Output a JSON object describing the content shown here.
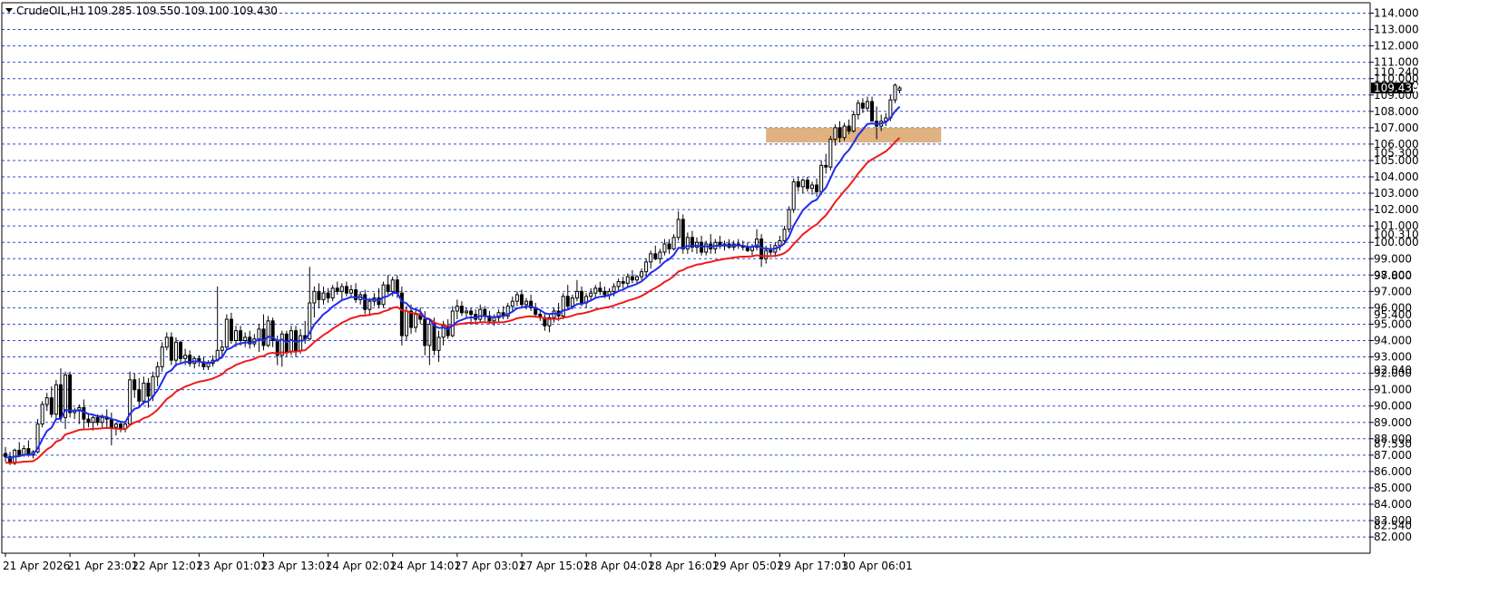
{
  "header": {
    "symbol": "CrudeOIL,H1",
    "ohlc": "109.285 109.550 109.100 109.430"
  },
  "colors": {
    "background": "#ffffff",
    "grid": "#2f4fd6",
    "bull_body": "#ffffff",
    "bear_body": "#000000",
    "wick": "#000000",
    "ma_fast": "#1f2bf0",
    "ma_slow": "#ee1b1b",
    "zone": "#d9a56a",
    "price_tag": "#000000",
    "price_tag_text": "#ffffff"
  },
  "chart_data": {
    "type": "candlestick",
    "title": "CrudeOIL,H1",
    "ylim": [
      82.0,
      114.5
    ],
    "grid": true,
    "y_ticks": [
      "114.000",
      "113.000",
      "112.000",
      "111.000",
      "110.000",
      "109.000",
      "108.000",
      "107.000",
      "106.000",
      "105.000",
      "104.000",
      "103.000",
      "102.000",
      "101.000",
      "100.000",
      "99.000",
      "98.000",
      "97.000",
      "96.000",
      "95.000",
      "94.000",
      "93.000",
      "92.000",
      "91.000",
      "90.000",
      "89.000",
      "88.000",
      "87.000",
      "86.000",
      "85.000",
      "84.000",
      "83.000",
      "82.000"
    ],
    "x_ticks": [
      {
        "label": "21 Apr 2026",
        "bar": 0
      },
      {
        "label": "21 Apr 23:01",
        "bar": 14
      },
      {
        "label": "22 Apr 12:01",
        "bar": 28
      },
      {
        "label": "23 Apr 01:01",
        "bar": 42
      },
      {
        "label": "23 Apr 13:01",
        "bar": 56
      },
      {
        "label": "24 Apr 02:01",
        "bar": 70
      },
      {
        "label": "24 Apr 14:01",
        "bar": 84
      },
      {
        "label": "27 Apr 03:01",
        "bar": 98
      },
      {
        "label": "27 Apr 15:01",
        "bar": 112
      },
      {
        "label": "28 Apr 04:01",
        "bar": 126
      },
      {
        "label": "28 Apr 16:01",
        "bar": 140
      },
      {
        "label": "29 Apr 05:01",
        "bar": 154
      },
      {
        "label": "29 Apr 17:01",
        "bar": 168
      },
      {
        "label": "30 Apr 06:01",
        "bar": 182
      }
    ],
    "price_tags": [
      "110.240",
      "109.430",
      "105.300",
      "100.310",
      "97.800",
      "95.400",
      "92.040",
      "87.530",
      "82.540"
    ],
    "current_price": 109.43,
    "zone": {
      "bar_from": 165,
      "bar_to": 203,
      "price_low": 106.1,
      "price_high": 107.0
    },
    "candles": [
      [
        87.1,
        87.5,
        86.6,
        86.9
      ],
      [
        86.9,
        87.2,
        86.4,
        86.5
      ],
      [
        86.5,
        87.4,
        86.4,
        87.3
      ],
      [
        87.3,
        87.8,
        87.0,
        87.0
      ],
      [
        87.0,
        87.6,
        86.9,
        87.4
      ],
      [
        87.4,
        87.9,
        86.9,
        87.0
      ],
      [
        87.0,
        87.3,
        86.8,
        87.2
      ],
      [
        87.2,
        89.2,
        87.1,
        88.9
      ],
      [
        88.9,
        90.3,
        88.7,
        90.1
      ],
      [
        90.1,
        90.8,
        89.7,
        90.5
      ],
      [
        90.5,
        91.2,
        89.3,
        89.5
      ],
      [
        89.5,
        91.6,
        89.2,
        91.3
      ],
      [
        91.3,
        92.3,
        89.0,
        89.3
      ],
      [
        89.3,
        92.1,
        88.6,
        91.9
      ],
      [
        91.9,
        92.1,
        89.3,
        89.6
      ],
      [
        89.6,
        89.9,
        89.2,
        89.7
      ],
      [
        89.7,
        90.1,
        88.9,
        89.9
      ],
      [
        89.9,
        90.4,
        88.6,
        89.2
      ],
      [
        89.2,
        89.5,
        88.7,
        89.0
      ],
      [
        89.0,
        89.4,
        88.5,
        89.3
      ],
      [
        89.3,
        89.5,
        88.8,
        89.0
      ],
      [
        89.0,
        89.5,
        88.7,
        89.3
      ],
      [
        89.3,
        89.8,
        88.6,
        89.2
      ],
      [
        89.2,
        89.6,
        87.6,
        88.7
      ],
      [
        88.7,
        89.0,
        88.2,
        88.9
      ],
      [
        88.9,
        89.1,
        88.4,
        88.6
      ],
      [
        88.6,
        89.1,
        88.4,
        88.9
      ],
      [
        88.9,
        92.1,
        88.8,
        91.6
      ],
      [
        91.6,
        92.0,
        90.5,
        91.0
      ],
      [
        91.0,
        91.7,
        90.0,
        90.3
      ],
      [
        90.3,
        91.8,
        90.1,
        91.4
      ],
      [
        91.4,
        91.7,
        89.9,
        90.6
      ],
      [
        90.6,
        92.1,
        90.3,
        91.8
      ],
      [
        91.8,
        92.7,
        91.2,
        92.4
      ],
      [
        92.4,
        93.9,
        92.1,
        93.6
      ],
      [
        93.6,
        94.5,
        93.4,
        94.2
      ],
      [
        94.2,
        94.5,
        92.5,
        92.8
      ],
      [
        92.8,
        94.2,
        92.4,
        93.9
      ],
      [
        93.9,
        94.0,
        92.6,
        92.9
      ],
      [
        92.9,
        93.5,
        92.5,
        93.1
      ],
      [
        93.1,
        93.4,
        92.4,
        92.6
      ],
      [
        92.6,
        93.0,
        92.3,
        92.9
      ],
      [
        92.9,
        93.1,
        92.4,
        92.7
      ],
      [
        92.7,
        93.0,
        92.2,
        92.4
      ],
      [
        92.4,
        92.8,
        92.2,
        92.6
      ],
      [
        92.6,
        93.1,
        92.4,
        92.8
      ],
      [
        92.8,
        97.3,
        92.7,
        93.4
      ],
      [
        93.4,
        94.0,
        92.9,
        93.6
      ],
      [
        93.6,
        95.6,
        93.4,
        95.3
      ],
      [
        95.3,
        95.7,
        93.8,
        94.0
      ],
      [
        94.0,
        94.9,
        93.6,
        94.6
      ],
      [
        94.6,
        94.9,
        93.7,
        94.0
      ],
      [
        94.0,
        94.5,
        93.6,
        94.2
      ],
      [
        94.2,
        94.6,
        93.5,
        93.8
      ],
      [
        93.8,
        94.4,
        93.6,
        94.1
      ],
      [
        94.1,
        95.0,
        93.3,
        94.7
      ],
      [
        94.7,
        95.6,
        93.4,
        93.7
      ],
      [
        93.7,
        95.5,
        93.6,
        95.2
      ],
      [
        95.2,
        95.4,
        93.6,
        94.0
      ],
      [
        94.0,
        94.3,
        92.5,
        93.1
      ],
      [
        93.1,
        94.6,
        92.4,
        94.4
      ],
      [
        94.4,
        94.6,
        93.0,
        93.3
      ],
      [
        93.3,
        94.9,
        93.1,
        94.6
      ],
      [
        94.6,
        94.9,
        93.0,
        93.4
      ],
      [
        93.4,
        94.7,
        93.2,
        94.3
      ],
      [
        94.3,
        95.2,
        93.8,
        94.1
      ],
      [
        94.1,
        98.5,
        94.0,
        96.3
      ],
      [
        96.3,
        97.3,
        95.4,
        97.0
      ],
      [
        97.0,
        97.5,
        96.0,
        96.5
      ],
      [
        96.5,
        97.3,
        96.2,
        96.9
      ],
      [
        96.9,
        97.2,
        96.3,
        96.6
      ],
      [
        96.6,
        97.4,
        96.4,
        97.2
      ],
      [
        97.2,
        97.6,
        96.8,
        97.0
      ],
      [
        97.0,
        97.5,
        96.5,
        97.3
      ],
      [
        97.3,
        97.6,
        96.7,
        96.9
      ],
      [
        96.9,
        97.4,
        96.6,
        97.1
      ],
      [
        97.1,
        97.5,
        96.3,
        96.5
      ],
      [
        96.5,
        97.0,
        96.2,
        96.8
      ],
      [
        96.8,
        97.1,
        95.6,
        95.9
      ],
      [
        95.9,
        96.6,
        95.5,
        96.4
      ],
      [
        96.4,
        96.9,
        96.1,
        96.6
      ],
      [
        96.6,
        97.2,
        96.0,
        96.2
      ],
      [
        96.2,
        97.6,
        96.0,
        97.4
      ],
      [
        97.4,
        98.0,
        96.8,
        97.0
      ],
      [
        97.0,
        97.9,
        96.7,
        97.7
      ],
      [
        97.7,
        98.0,
        96.6,
        96.9
      ],
      [
        96.9,
        97.3,
        93.7,
        94.3
      ],
      [
        94.3,
        96.1,
        94.0,
        95.8
      ],
      [
        95.8,
        96.2,
        94.4,
        94.8
      ],
      [
        94.8,
        96.0,
        94.5,
        95.6
      ],
      [
        95.6,
        96.0,
        95.0,
        95.3
      ],
      [
        95.3,
        95.8,
        93.1,
        93.7
      ],
      [
        93.7,
        95.3,
        92.5,
        95.0
      ],
      [
        95.0,
        95.4,
        93.1,
        93.4
      ],
      [
        93.4,
        94.6,
        92.7,
        94.2
      ],
      [
        94.2,
        95.2,
        93.7,
        94.9
      ],
      [
        94.9,
        95.3,
        94.1,
        94.3
      ],
      [
        94.3,
        96.1,
        94.2,
        95.8
      ],
      [
        95.8,
        96.5,
        95.3,
        96.1
      ],
      [
        96.1,
        96.4,
        95.5,
        95.7
      ],
      [
        95.7,
        96.0,
        95.4,
        95.8
      ],
      [
        95.8,
        96.0,
        95.1,
        95.6
      ],
      [
        95.6,
        95.9,
        95.0,
        95.3
      ],
      [
        95.3,
        96.2,
        95.1,
        95.9
      ],
      [
        95.9,
        96.1,
        95.2,
        95.5
      ],
      [
        95.5,
        95.8,
        95.0,
        95.2
      ],
      [
        95.2,
        95.6,
        94.9,
        95.4
      ],
      [
        95.4,
        95.9,
        95.1,
        95.7
      ],
      [
        95.7,
        96.1,
        95.3,
        95.5
      ],
      [
        95.5,
        96.3,
        95.3,
        96.1
      ],
      [
        96.1,
        96.7,
        95.8,
        96.4
      ],
      [
        96.4,
        97.0,
        96.1,
        96.8
      ],
      [
        96.8,
        97.1,
        96.0,
        96.2
      ],
      [
        96.2,
        96.6,
        95.9,
        96.4
      ],
      [
        96.4,
        96.8,
        95.8,
        96.0
      ],
      [
        96.0,
        96.3,
        95.4,
        95.6
      ],
      [
        95.6,
        95.9,
        95.2,
        95.4
      ],
      [
        95.4,
        95.7,
        94.6,
        94.9
      ],
      [
        94.9,
        95.6,
        94.5,
        95.4
      ],
      [
        95.4,
        96.0,
        95.1,
        95.8
      ],
      [
        95.8,
        96.3,
        95.2,
        95.5
      ],
      [
        95.5,
        96.9,
        95.3,
        96.7
      ],
      [
        96.7,
        97.4,
        95.9,
        96.1
      ],
      [
        96.1,
        96.8,
        95.9,
        96.6
      ],
      [
        96.6,
        97.7,
        96.4,
        97.0
      ],
      [
        97.0,
        97.3,
        96.1,
        96.3
      ],
      [
        96.3,
        96.9,
        96.0,
        96.7
      ],
      [
        96.7,
        97.2,
        96.5,
        96.9
      ],
      [
        96.9,
        97.4,
        96.6,
        97.2
      ],
      [
        97.2,
        97.6,
        96.8,
        97.0
      ],
      [
        97.0,
        97.3,
        96.6,
        96.8
      ],
      [
        96.8,
        97.2,
        96.5,
        97.0
      ],
      [
        97.0,
        97.5,
        96.7,
        97.3
      ],
      [
        97.3,
        97.8,
        97.0,
        97.6
      ],
      [
        97.6,
        97.9,
        97.2,
        97.5
      ],
      [
        97.5,
        98.1,
        97.3,
        97.9
      ],
      [
        97.9,
        98.3,
        97.5,
        97.7
      ],
      [
        97.7,
        98.0,
        97.5,
        97.9
      ],
      [
        97.9,
        98.4,
        97.7,
        98.2
      ],
      [
        98.2,
        99.0,
        97.9,
        98.8
      ],
      [
        98.8,
        99.5,
        98.4,
        99.3
      ],
      [
        99.3,
        99.8,
        98.9,
        99.0
      ],
      [
        99.0,
        99.6,
        98.7,
        99.4
      ],
      [
        99.4,
        100.2,
        99.2,
        99.9
      ],
      [
        99.9,
        100.2,
        99.3,
        99.6
      ],
      [
        99.6,
        100.5,
        99.5,
        100.3
      ],
      [
        100.3,
        101.9,
        100.1,
        101.4
      ],
      [
        101.4,
        101.7,
        99.3,
        99.6
      ],
      [
        99.6,
        100.6,
        99.3,
        100.3
      ],
      [
        100.3,
        100.7,
        99.4,
        99.7
      ],
      [
        99.7,
        100.3,
        99.3,
        100.0
      ],
      [
        100.0,
        100.4,
        99.2,
        99.4
      ],
      [
        99.4,
        100.1,
        99.2,
        99.9
      ],
      [
        99.9,
        100.5,
        99.3,
        99.6
      ],
      [
        99.6,
        100.2,
        99.3,
        100.0
      ],
      [
        100.0,
        100.4,
        99.6,
        99.8
      ],
      [
        99.8,
        100.1,
        99.5,
        99.9
      ],
      [
        99.9,
        100.2,
        99.6,
        99.7
      ],
      [
        99.7,
        100.1,
        99.5,
        99.9
      ],
      [
        99.9,
        100.2,
        99.6,
        99.8
      ],
      [
        99.8,
        100.1,
        99.5,
        99.7
      ],
      [
        99.7,
        100.0,
        99.4,
        99.5
      ],
      [
        99.5,
        99.9,
        99.2,
        99.7
      ],
      [
        99.7,
        100.8,
        99.5,
        100.2
      ],
      [
        100.2,
        100.5,
        98.5,
        99.0
      ],
      [
        99.0,
        99.8,
        98.7,
        99.5
      ],
      [
        99.5,
        99.9,
        99.2,
        99.4
      ],
      [
        99.4,
        100.0,
        99.1,
        99.8
      ],
      [
        99.8,
        100.4,
        99.5,
        100.1
      ],
      [
        100.1,
        101.0,
        99.9,
        100.8
      ],
      [
        100.8,
        102.2,
        100.6,
        102.0
      ],
      [
        102.0,
        103.9,
        101.8,
        103.7
      ],
      [
        103.7,
        104.0,
        103.1,
        103.4
      ],
      [
        103.4,
        103.9,
        103.0,
        103.8
      ],
      [
        103.8,
        104.0,
        103.1,
        103.3
      ],
      [
        103.3,
        103.7,
        102.9,
        103.5
      ],
      [
        103.5,
        103.9,
        102.8,
        103.1
      ],
      [
        103.1,
        105.0,
        102.9,
        104.7
      ],
      [
        104.7,
        105.4,
        104.2,
        104.6
      ],
      [
        104.6,
        106.5,
        104.4,
        106.3
      ],
      [
        106.3,
        107.2,
        105.9,
        107.0
      ],
      [
        107.0,
        107.4,
        106.1,
        106.4
      ],
      [
        106.4,
        107.3,
        106.2,
        107.1
      ],
      [
        107.1,
        107.5,
        106.6,
        106.8
      ],
      [
        106.8,
        108.0,
        106.7,
        107.8
      ],
      [
        107.8,
        108.7,
        107.5,
        108.5
      ],
      [
        108.5,
        108.8,
        107.9,
        108.2
      ],
      [
        108.2,
        108.9,
        108.0,
        108.6
      ],
      [
        108.6,
        108.9,
        107.6,
        107.4
      ],
      [
        107.4,
        108.3,
        106.3,
        107.1
      ],
      [
        107.1,
        107.8,
        106.8,
        107.4
      ],
      [
        107.4,
        107.9,
        107.1,
        107.6
      ],
      [
        107.6,
        109.0,
        107.4,
        108.7
      ],
      [
        108.7,
        109.7,
        108.5,
        109.6
      ],
      [
        109.29,
        109.55,
        109.1,
        109.43
      ]
    ]
  }
}
